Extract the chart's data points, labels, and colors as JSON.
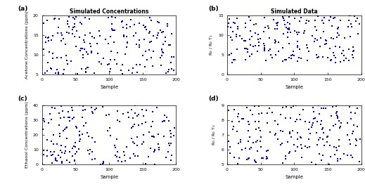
{
  "title_a": "Simulated Concentrations",
  "title_b": "Simulated Data",
  "xlabel": "Sample",
  "ylabel_a": "Acetone Concentrations (ppm)",
  "ylabel_c": "Ethanol Concentrations (ppm)",
  "ylabel_b": "R$_0$ / R$_0$ T$_1$",
  "ylabel_d": "R$_0$ / R$_0$ T$_2$",
  "label_a": "(a)",
  "label_b": "(b)",
  "label_c": "(c)",
  "label_d": "(d)",
  "xlim": [
    0,
    200
  ],
  "ylim_a": [
    5,
    20
  ],
  "ylim_b": [
    0,
    15
  ],
  "ylim_c": [
    0,
    40
  ],
  "ylim_d": [
    5,
    9
  ],
  "xticks": [
    0,
    50,
    100,
    150,
    200
  ],
  "yticks_a": [
    5,
    10,
    15,
    20
  ],
  "yticks_b": [
    0,
    5,
    10,
    15
  ],
  "yticks_c": [
    0,
    10,
    20,
    30,
    40
  ],
  "yticks_d": [
    5,
    6,
    7,
    8,
    9
  ],
  "marker_color": "#0000bb",
  "marker": "s",
  "marker_size": 1.8,
  "n_points": 200,
  "seed_a": 42,
  "seed_b": 7,
  "seed_c": 13,
  "seed_d": 99,
  "background_color": "#ffffff",
  "linewidth_axes": 0.5
}
